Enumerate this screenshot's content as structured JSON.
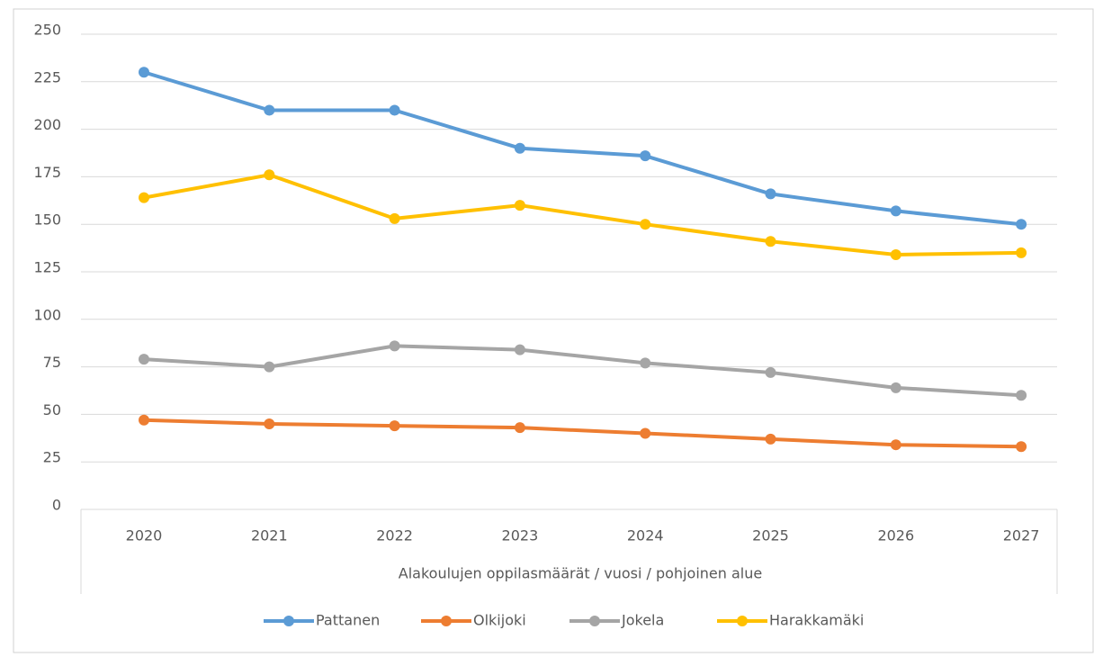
{
  "chart_data": {
    "type": "line",
    "x_label": "Alakoulujen oppilasmäärät / vuosi / pohjoinen alue",
    "categories": [
      "2020",
      "2021",
      "2022",
      "2023",
      "2024",
      "2025",
      "2026",
      "2027"
    ],
    "series": [
      {
        "name": "Pattanen",
        "color": "#5b9bd5",
        "values": [
          230,
          210,
          210,
          190,
          186,
          166,
          157,
          150
        ]
      },
      {
        "name": "Olkijoki",
        "color": "#ed7d31",
        "values": [
          47,
          45,
          44,
          43,
          40,
          37,
          34,
          33
        ]
      },
      {
        "name": "Jokela",
        "color": "#a5a5a5",
        "values": [
          79,
          75,
          86,
          84,
          77,
          72,
          64,
          60
        ]
      },
      {
        "name": "Harakkamäki",
        "color": "#ffc000",
        "values": [
          164,
          176,
          153,
          160,
          150,
          141,
          134,
          135
        ]
      }
    ],
    "ylim": [
      0,
      250
    ],
    "yticks": [
      0,
      25,
      50,
      75,
      100,
      125,
      150,
      175,
      200,
      225,
      250
    ],
    "grid": true,
    "legend": "bottom"
  }
}
